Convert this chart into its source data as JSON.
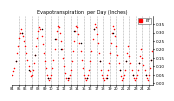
{
  "title": "Evapotranspiration  per Day (Inches)",
  "ylabel_right": [
    "0.35",
    "0.30",
    "0.25",
    "0.20",
    "0.15",
    "0.10",
    "0.05",
    "0.00"
  ],
  "ylim": [
    -0.01,
    0.4
  ],
  "xlim": [
    0,
    130
  ],
  "background_color": "#ffffff",
  "grid_color": "#888888",
  "dot_color_red": "#ff0000",
  "dot_color_black": "#000000",
  "legend_label": "ET",
  "legend_color": "#ff0000",
  "x_tick_labels": [
    "04",
    "05",
    "06",
    "07",
    "08",
    "09",
    "10",
    "11",
    "12",
    "13",
    "14",
    "15",
    "16",
    "17",
    "18",
    "19",
    "20",
    "21",
    "22",
    "23",
    "24",
    "25"
  ],
  "x_tick_pos": [
    0,
    6,
    12,
    18,
    24,
    30,
    36,
    42,
    48,
    54,
    60,
    66,
    72,
    78,
    84,
    90,
    96,
    102,
    108,
    114,
    120,
    126
  ],
  "vline_positions": [
    6,
    12,
    18,
    24,
    30,
    36,
    42,
    48,
    54,
    60,
    66,
    72,
    78,
    84,
    90,
    96,
    102,
    108,
    114,
    120,
    126
  ],
  "red_dots": {
    "x": [
      0,
      1,
      2,
      3,
      4,
      5,
      6,
      7,
      8,
      9,
      10,
      11,
      12,
      13,
      14,
      15,
      16,
      17,
      18,
      19,
      20,
      21,
      22,
      23,
      24,
      25,
      26,
      27,
      28,
      29,
      30,
      31,
      32,
      33,
      34,
      35,
      36,
      37,
      38,
      39,
      40,
      41,
      42,
      43,
      44,
      45,
      46,
      47,
      48,
      49,
      50,
      51,
      52,
      53,
      54,
      55,
      56,
      57,
      58,
      59,
      60,
      61,
      62,
      63,
      64,
      65,
      66,
      67,
      68,
      69,
      70,
      71,
      72,
      73,
      74,
      75,
      76,
      77,
      78,
      79,
      80,
      81,
      82,
      83,
      84,
      85,
      86,
      87,
      88,
      89,
      90,
      91,
      92,
      93,
      94,
      95,
      96,
      97,
      98,
      99,
      100,
      101,
      102,
      103,
      104,
      105,
      106,
      107,
      108,
      109,
      110,
      111,
      112,
      113,
      114,
      115,
      116,
      117,
      118,
      119,
      120,
      121,
      122,
      123,
      124,
      125,
      126,
      127,
      128,
      129
    ],
    "y": [
      0.05,
      0.07,
      0.09,
      0.13,
      0.18,
      0.22,
      0.27,
      0.3,
      0.32,
      0.3,
      0.28,
      0.25,
      0.22,
      0.18,
      0.14,
      0.1,
      0.07,
      0.04,
      0.05,
      0.08,
      0.12,
      0.17,
      0.22,
      0.27,
      0.31,
      0.33,
      0.32,
      0.28,
      0.23,
      0.18,
      0.13,
      0.09,
      0.05,
      0.03,
      0.02,
      0.03,
      0.05,
      0.09,
      0.14,
      0.2,
      0.26,
      0.31,
      0.34,
      0.33,
      0.3,
      0.25,
      0.2,
      0.15,
      0.1,
      0.06,
      0.03,
      0.02,
      0.03,
      0.05,
      0.08,
      0.13,
      0.19,
      0.25,
      0.31,
      0.34,
      0.33,
      0.29,
      0.24,
      0.19,
      0.14,
      0.09,
      0.05,
      0.03,
      0.02,
      0.03,
      0.05,
      0.08,
      0.13,
      0.19,
      0.26,
      0.32,
      0.35,
      0.33,
      0.29,
      0.24,
      0.18,
      0.13,
      0.08,
      0.05,
      0.03,
      0.02,
      0.03,
      0.05,
      0.08,
      0.12,
      0.18,
      0.24,
      0.3,
      0.34,
      0.32,
      0.28,
      0.22,
      0.17,
      0.12,
      0.08,
      0.04,
      0.02,
      0.03,
      0.05,
      0.08,
      0.13,
      0.18,
      0.22,
      0.16,
      0.12,
      0.08,
      0.05,
      0.03,
      0.02,
      0.03,
      0.05,
      0.08,
      0.12,
      0.16,
      0.2,
      0.15,
      0.11,
      0.08,
      0.05,
      0.03,
      0.02,
      0.05,
      0.09,
      0.14,
      0.19
    ]
  },
  "black_dots": {
    "x": [
      3,
      9,
      15,
      21,
      27,
      33,
      39,
      45,
      51,
      57,
      63,
      69,
      75,
      81,
      87,
      93,
      99,
      105,
      111,
      117,
      123,
      128
    ],
    "y": [
      0.13,
      0.3,
      0.08,
      0.17,
      0.32,
      0.03,
      0.26,
      0.2,
      0.03,
      0.31,
      0.24,
      0.03,
      0.32,
      0.13,
      0.03,
      0.3,
      0.08,
      0.13,
      0.05,
      0.12,
      0.05,
      0.14
    ]
  }
}
